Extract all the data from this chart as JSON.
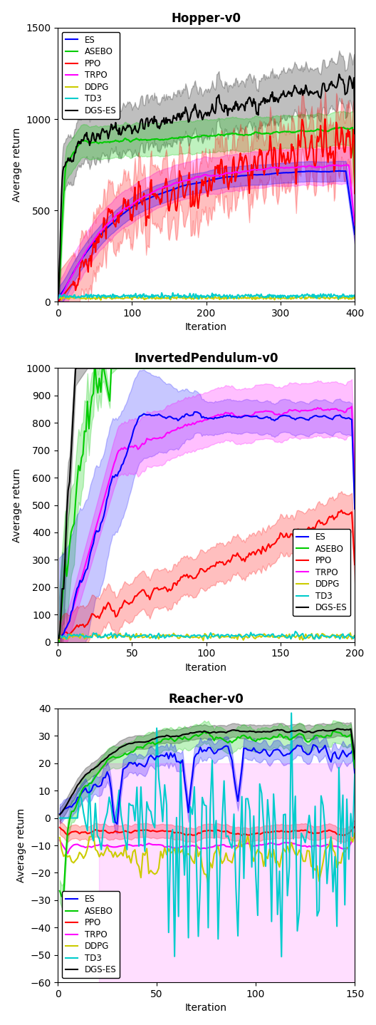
{
  "colors": {
    "ES": "#0000ff",
    "ASEBO": "#00cc00",
    "PPO": "#ff0000",
    "TRPO": "#ff00ff",
    "DDPG": "#cccc00",
    "TD3": "#00cccc",
    "DGS-ES": "#000000"
  },
  "lw": 1.5,
  "alpha": 0.25,
  "seed": 42,
  "subplot1": {
    "title": "Hopper-v0",
    "xlim": [
      0,
      400
    ],
    "ylim": [
      0,
      1500
    ],
    "xticks": [
      0,
      100,
      200,
      300,
      400
    ],
    "yticks": [
      0,
      500,
      1000,
      1500
    ]
  },
  "subplot2": {
    "title": "InvertedPendulum-v0",
    "xlim": [
      0,
      200
    ],
    "ylim": [
      0,
      1000
    ],
    "xticks": [
      0,
      50,
      100,
      150,
      200
    ],
    "yticks": [
      0,
      100,
      200,
      300,
      400,
      500,
      600,
      700,
      800,
      900,
      1000
    ]
  },
  "subplot3": {
    "title": "Reacher-v0",
    "xlim": [
      0,
      150
    ],
    "ylim": [
      -60,
      40
    ],
    "xticks": [
      0,
      50,
      100,
      150
    ],
    "yticks": [
      -60,
      -50,
      -40,
      -30,
      -20,
      -10,
      0,
      10,
      20,
      30,
      40
    ]
  }
}
